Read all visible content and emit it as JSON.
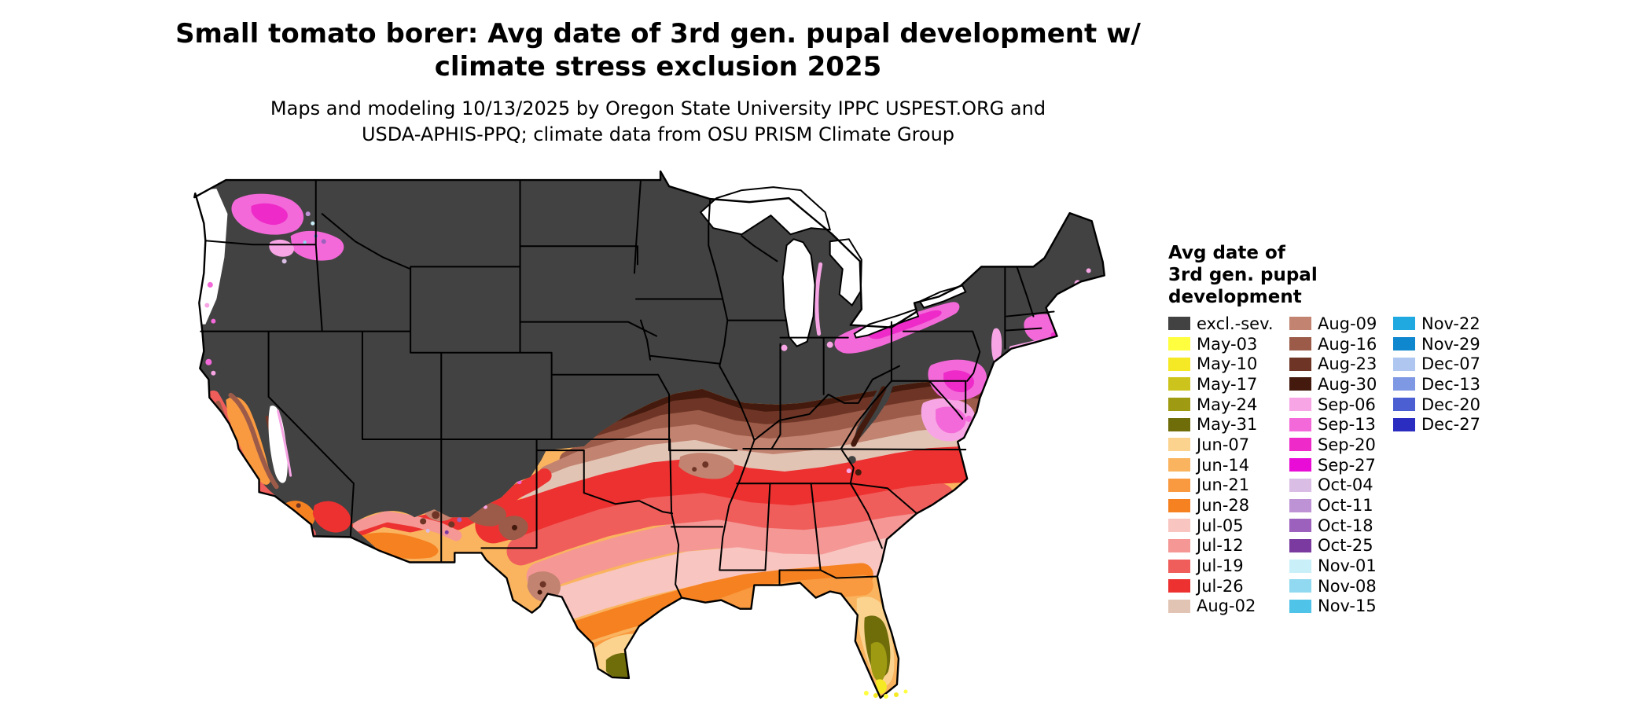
{
  "title": {
    "line1": "Small tomato borer: Avg date of 3rd gen. pupal development w/",
    "line2": "climate stress exclusion 2025"
  },
  "subtitle": {
    "line1": "Maps and modeling 10/13/2025 by Oregon State University IPPC USPEST.ORG and",
    "line2": "USDA-APHIS-PPQ; climate data from OSU PRISM Climate Group"
  },
  "legend": {
    "title_lines": [
      "Avg date of",
      "3rd gen. pupal",
      "development"
    ],
    "columns": [
      {
        "items": [
          {
            "label": "excl.-sev.",
            "color": "#424242"
          },
          {
            "label": "May-03",
            "color": "#FFFF40"
          },
          {
            "label": "May-10",
            "color": "#F5E926"
          },
          {
            "label": "May-17",
            "color": "#CCC41C"
          },
          {
            "label": "May-24",
            "color": "#9E9A12"
          },
          {
            "label": "May-31",
            "color": "#6F6D0A"
          },
          {
            "label": "Jun-07",
            "color": "#FBD38E"
          },
          {
            "label": "Jun-14",
            "color": "#FAB45F"
          },
          {
            "label": "Jun-21",
            "color": "#F99A40"
          },
          {
            "label": "Jun-28",
            "color": "#F68121"
          },
          {
            "label": "Jul-05",
            "color": "#F8C5C1"
          },
          {
            "label": "Jul-12",
            "color": "#F49795"
          },
          {
            "label": "Jul-19",
            "color": "#F05E5C"
          },
          {
            "label": "Jul-26",
            "color": "#ED3130"
          },
          {
            "label": "Aug-02",
            "color": "#E2C4B5"
          }
        ]
      },
      {
        "items": [
          {
            "label": "Aug-09",
            "color": "#C28370"
          },
          {
            "label": "Aug-16",
            "color": "#9C5B49"
          },
          {
            "label": "Aug-23",
            "color": "#6E3526"
          },
          {
            "label": "Aug-30",
            "color": "#431A0D"
          },
          {
            "label": "Sep-06",
            "color": "#F7A5E5"
          },
          {
            "label": "Sep-13",
            "color": "#F369D9"
          },
          {
            "label": "Sep-20",
            "color": "#EE2BC9"
          },
          {
            "label": "Sep-27",
            "color": "#E90CD6"
          },
          {
            "label": "Oct-04",
            "color": "#DABDE5"
          },
          {
            "label": "Oct-11",
            "color": "#BD93D5"
          },
          {
            "label": "Oct-18",
            "color": "#9B61BC"
          },
          {
            "label": "Oct-25",
            "color": "#7A3AA0"
          },
          {
            "label": "Nov-01",
            "color": "#C9F0F9"
          },
          {
            "label": "Nov-08",
            "color": "#90D9F1"
          },
          {
            "label": "Nov-15",
            "color": "#50C3E9"
          }
        ]
      },
      {
        "items": [
          {
            "label": "Nov-22",
            "color": "#20A9E0"
          },
          {
            "label": "Nov-29",
            "color": "#0F87CF"
          },
          {
            "label": "Dec-07",
            "color": "#AFC7F0"
          },
          {
            "label": "Dec-13",
            "color": "#7F98E3"
          },
          {
            "label": "Dec-20",
            "color": "#4B5FD2"
          },
          {
            "label": "Dec-27",
            "color": "#2B2CC0"
          }
        ]
      }
    ]
  },
  "map": {
    "excluded_label": "excl.-sev.",
    "outline_color": "#000000",
    "water_color": "#ffffff",
    "background_color": "#ffffff"
  }
}
